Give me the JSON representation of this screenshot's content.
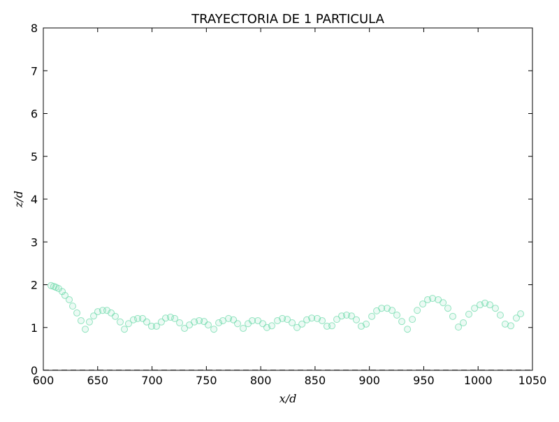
{
  "chart_data": {
    "type": "scatter",
    "title": "TRAYECTORIA DE 1 PARTICULA",
    "x_label": "x/d",
    "y_label": "z/d",
    "xlim": [
      600,
      1050
    ],
    "ylim": [
      0,
      8
    ],
    "xticks": [
      600,
      650,
      700,
      750,
      800,
      850,
      900,
      950,
      1000,
      1050
    ],
    "yticks": [
      0,
      1,
      2,
      3,
      4,
      5,
      6,
      7,
      8
    ],
    "hline": 0,
    "series": [
      {
        "color": "#66d9a6",
        "x": [
          607.1,
          609.6,
          611.6,
          614.1,
          617.4,
          619.9,
          623.8,
          627.0,
          630.9,
          634.7,
          638.6,
          642.4,
          646.3,
          650.1,
          654.6,
          658.5,
          662.4,
          666.2,
          670.7,
          674.6,
          678.4,
          682.9,
          686.8,
          691.3,
          695.1,
          699.6,
          704.1,
          708.6,
          712.5,
          717.0,
          720.9,
          725.4,
          729.9,
          734.4,
          738.9,
          743.4,
          747.9,
          751.7,
          756.9,
          761.4,
          765.2,
          770.4,
          774.9,
          778.7,
          783.9,
          788.4,
          792.2,
          797.4,
          801.9,
          805.7,
          810.2,
          815.4,
          819.9,
          824.4,
          828.9,
          833.4,
          837.9,
          842.4,
          846.9,
          852.0,
          856.5,
          861.0,
          865.5,
          870.0,
          874.5,
          879.0,
          883.5,
          888.0,
          892.5,
          897.0,
          902.2,
          906.7,
          911.2,
          916.3,
          920.8,
          925.3,
          929.8,
          935.0,
          939.5,
          944.0,
          949.1,
          953.6,
          958.1,
          963.3,
          967.8,
          972.2,
          976.7,
          981.9,
          986.4,
          991.5,
          996.7,
          1001.8,
          1006.3,
          1010.8,
          1015.9,
          1020.4,
          1024.9,
          1030.1,
          1035.2,
          1039.1
        ],
        "values": [
          1.98,
          1.96,
          1.94,
          1.91,
          1.84,
          1.75,
          1.65,
          1.5,
          1.34,
          1.16,
          0.96,
          1.13,
          1.27,
          1.37,
          1.4,
          1.4,
          1.34,
          1.26,
          1.13,
          0.96,
          1.09,
          1.18,
          1.21,
          1.21,
          1.13,
          1.03,
          1.03,
          1.13,
          1.22,
          1.24,
          1.21,
          1.11,
          0.98,
          1.06,
          1.13,
          1.16,
          1.14,
          1.06,
          0.96,
          1.11,
          1.16,
          1.21,
          1.18,
          1.09,
          0.98,
          1.09,
          1.16,
          1.16,
          1.09,
          1.0,
          1.04,
          1.16,
          1.21,
          1.19,
          1.11,
          1.0,
          1.08,
          1.18,
          1.22,
          1.21,
          1.16,
          1.03,
          1.04,
          1.19,
          1.27,
          1.29,
          1.27,
          1.18,
          1.03,
          1.08,
          1.26,
          1.39,
          1.45,
          1.45,
          1.4,
          1.29,
          1.14,
          0.96,
          1.19,
          1.4,
          1.55,
          1.65,
          1.68,
          1.65,
          1.58,
          1.45,
          1.26,
          1.01,
          1.11,
          1.31,
          1.45,
          1.53,
          1.57,
          1.53,
          1.45,
          1.29,
          1.08,
          1.04,
          1.22,
          1.32
        ]
      }
    ]
  }
}
